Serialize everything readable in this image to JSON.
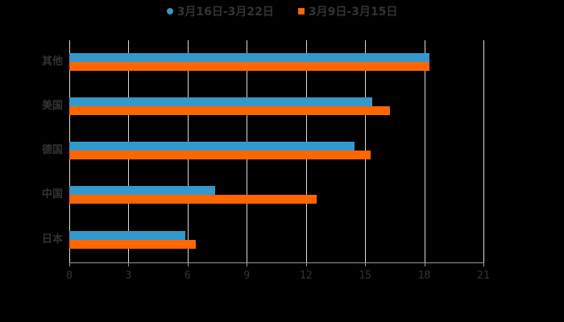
{
  "chart_data": {
    "type": "bar",
    "orientation": "horizontal",
    "title": "",
    "xlabel": "",
    "ylabel": "",
    "xlim": [
      0,
      21
    ],
    "x_ticks": [
      "0",
      "3",
      "6",
      "9",
      "12",
      "15",
      "18",
      "21"
    ],
    "categories": [
      "其他",
      "美国",
      "德国",
      "中国",
      "日本"
    ],
    "series": [
      {
        "name": "3月16日-3月22日",
        "color": "#3399cc",
        "marker": "circle",
        "values": [
          18.25,
          15.35,
          14.45,
          7.4,
          5.9
        ]
      },
      {
        "name": "3月9日-3月15日",
        "color": "#ff6600",
        "marker": "square",
        "values": [
          18.25,
          16.25,
          15.27,
          12.53,
          6.4
        ]
      }
    ],
    "grid": true,
    "legend_position": "top"
  }
}
